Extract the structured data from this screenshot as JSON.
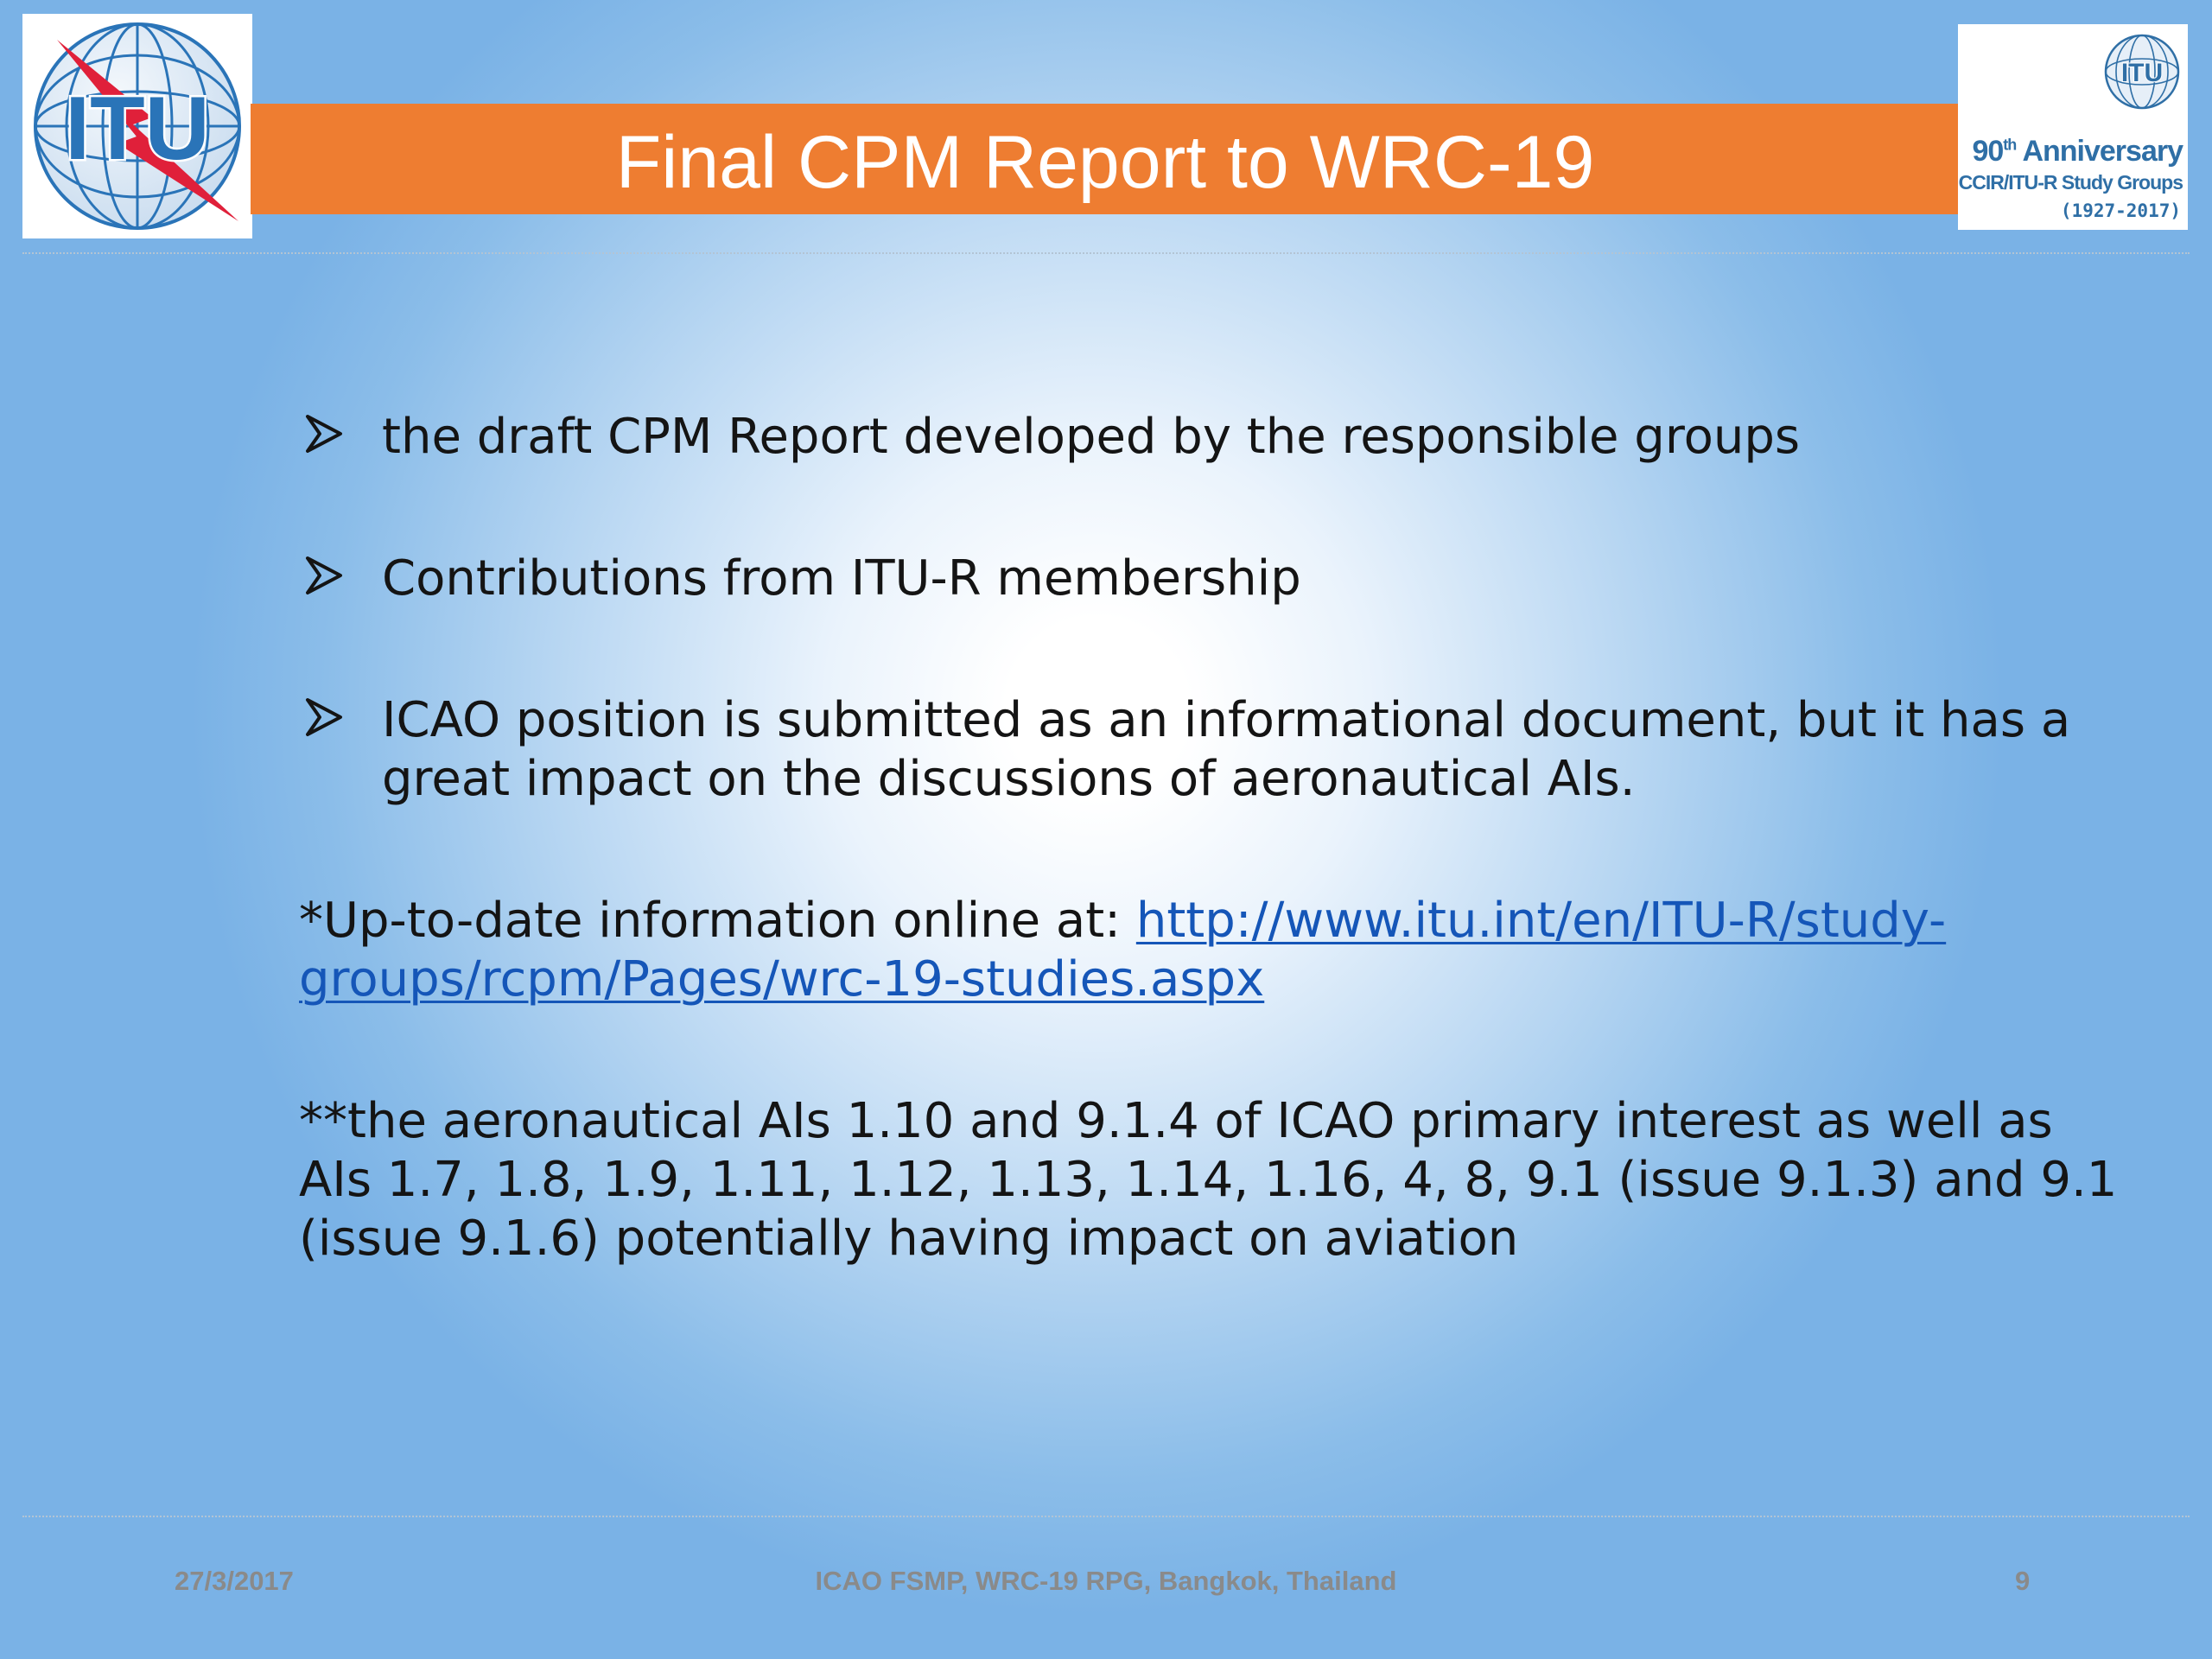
{
  "slide": {
    "title": "Final CPM Report to WRC-19",
    "logo_left": {
      "text": "ITU",
      "icon": "itu-globe-logo"
    },
    "logo_right": {
      "icon": "itu-anniversary-logo",
      "line1_number": "90",
      "line1_suffix": "th",
      "line1_rest": " Anniversary",
      "line2": "CCIR/ITU-R Study Groups",
      "line3": "(1927-2017)"
    },
    "bullets": [
      {
        "text": "the draft CPM Report developed by the responsible groups"
      },
      {
        "text": "Contributions from ITU-R membership"
      },
      {
        "text": "ICAO position is submitted as an informational document, but it has a great impact on the discussions of aeronautical AIs."
      }
    ],
    "bullet_icon": "arrow-bullet-icon",
    "note1": {
      "prefix": "*Up-to-date information online at: ",
      "link": "http://www.itu.int/en/ITU-R/study-groups/rcpm/Pages/wrc-19-studies.aspx"
    },
    "note2": "**the aeronautical AIs 1.10 and 9.1.4 of ICAO primary interest as well as AIs 1.7, 1.8, 1.9, 1.11, 1.12, 1.13, 1.14, 1.16, 4, 8, 9.1 (issue 9.1.3) and 9.1 (issue 9.1.6) potentially having impact on aviation",
    "footer": {
      "date": "27/3/2017",
      "event": "ICAO FSMP, WRC-19 RPG, Bangkok, Thailand",
      "page": "9"
    }
  },
  "colors": {
    "title_bar": "#ee7d31",
    "link": "#1556b8",
    "logo_blue": "#2a74b8",
    "logo_red": "#e0203a",
    "footer_text": "#8a8a8a"
  }
}
